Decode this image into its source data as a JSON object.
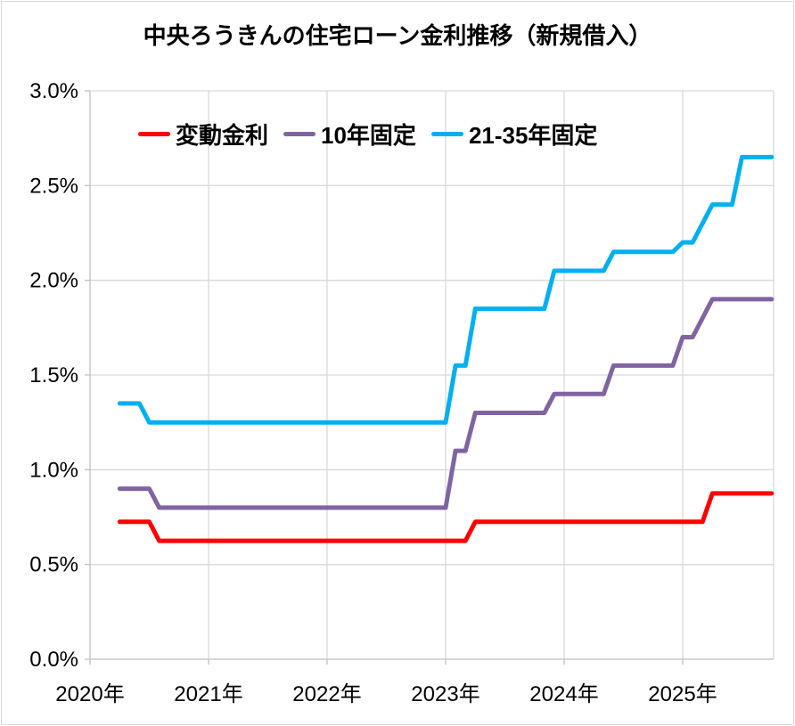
{
  "title": "中央ろうきんの住宅ローン金利推移（新規借入）",
  "colors": {
    "background": "#ffffff",
    "gridline": "#d9d9d9",
    "axis_line": "#bfbfbf",
    "text": "#000000",
    "series_variable": "#ff0000",
    "series_10y": "#8064a2",
    "series_21_35y": "#00b0f0"
  },
  "chart_data": {
    "type": "line",
    "title": "中央ろうきんの住宅ローン金利推移（新規借入）",
    "xlabel": "",
    "ylabel": "",
    "ylim": [
      0,
      3.0
    ],
    "y_tick_step": 0.5,
    "y_tick_labels": [
      "0.0%",
      "0.5%",
      "1.0%",
      "1.5%",
      "2.0%",
      "2.5%",
      "3.0%"
    ],
    "x_tick_labels": [
      "2020年",
      "2021年",
      "2022年",
      "2023年",
      "2024年",
      "2025年"
    ],
    "x_tick_years": [
      2020,
      2021,
      2022,
      2023,
      2024,
      2025
    ],
    "grid": true,
    "legend_position": "top",
    "x_interval": "monthly",
    "x_start": "2020-04",
    "x_end": "2025-10",
    "months": [
      "2020-04",
      "2020-05",
      "2020-06",
      "2020-07",
      "2020-08",
      "2020-09",
      "2020-10",
      "2020-11",
      "2020-12",
      "2021-01",
      "2021-02",
      "2021-03",
      "2021-04",
      "2021-05",
      "2021-06",
      "2021-07",
      "2021-08",
      "2021-09",
      "2021-10",
      "2021-11",
      "2021-12",
      "2022-01",
      "2022-02",
      "2022-03",
      "2022-04",
      "2022-05",
      "2022-06",
      "2022-07",
      "2022-08",
      "2022-09",
      "2022-10",
      "2022-11",
      "2022-12",
      "2023-01",
      "2023-02",
      "2023-03",
      "2023-04",
      "2023-05",
      "2023-06",
      "2023-07",
      "2023-08",
      "2023-09",
      "2023-10",
      "2023-11",
      "2023-12",
      "2024-01",
      "2024-02",
      "2024-03",
      "2024-04",
      "2024-05",
      "2024-06",
      "2024-07",
      "2024-08",
      "2024-09",
      "2024-10",
      "2024-11",
      "2024-12",
      "2025-01",
      "2025-02",
      "2025-03",
      "2025-04",
      "2025-05",
      "2025-06",
      "2025-07",
      "2025-08",
      "2025-09",
      "2025-10"
    ],
    "unit": "%",
    "series": [
      {
        "id": "variable-rate",
        "name": "変動金利",
        "color": "#ff0000",
        "values": [
          0.725,
          0.725,
          0.725,
          0.725,
          0.625,
          0.625,
          0.625,
          0.625,
          0.625,
          0.625,
          0.625,
          0.625,
          0.625,
          0.625,
          0.625,
          0.625,
          0.625,
          0.625,
          0.625,
          0.625,
          0.625,
          0.625,
          0.625,
          0.625,
          0.625,
          0.625,
          0.625,
          0.625,
          0.625,
          0.625,
          0.625,
          0.625,
          0.625,
          0.625,
          0.625,
          0.625,
          0.725,
          0.725,
          0.725,
          0.725,
          0.725,
          0.725,
          0.725,
          0.725,
          0.725,
          0.725,
          0.725,
          0.725,
          0.725,
          0.725,
          0.725,
          0.725,
          0.725,
          0.725,
          0.725,
          0.725,
          0.725,
          0.725,
          0.725,
          0.725,
          0.875,
          0.875,
          0.875,
          0.875,
          0.875,
          0.875,
          0.875
        ]
      },
      {
        "id": "10y-fixed",
        "name": "10年固定",
        "color": "#8064a2",
        "values": [
          0.9,
          0.9,
          0.9,
          0.9,
          0.8,
          0.8,
          0.8,
          0.8,
          0.8,
          0.8,
          0.8,
          0.8,
          0.8,
          0.8,
          0.8,
          0.8,
          0.8,
          0.8,
          0.8,
          0.8,
          0.8,
          0.8,
          0.8,
          0.8,
          0.8,
          0.8,
          0.8,
          0.8,
          0.8,
          0.8,
          0.8,
          0.8,
          0.8,
          0.8,
          1.1,
          1.1,
          1.3,
          1.3,
          1.3,
          1.3,
          1.3,
          1.3,
          1.3,
          1.3,
          1.4,
          1.4,
          1.4,
          1.4,
          1.4,
          1.4,
          1.55,
          1.55,
          1.55,
          1.55,
          1.55,
          1.55,
          1.55,
          1.7,
          1.7,
          1.8,
          1.9,
          1.9,
          1.9,
          1.9,
          1.9,
          1.9,
          1.9
        ]
      },
      {
        "id": "21-35y-fixed",
        "name": "21-35年固定",
        "color": "#00b0f0",
        "values": [
          1.35,
          1.35,
          1.35,
          1.25,
          1.25,
          1.25,
          1.25,
          1.25,
          1.25,
          1.25,
          1.25,
          1.25,
          1.25,
          1.25,
          1.25,
          1.25,
          1.25,
          1.25,
          1.25,
          1.25,
          1.25,
          1.25,
          1.25,
          1.25,
          1.25,
          1.25,
          1.25,
          1.25,
          1.25,
          1.25,
          1.25,
          1.25,
          1.25,
          1.25,
          1.55,
          1.55,
          1.85,
          1.85,
          1.85,
          1.85,
          1.85,
          1.85,
          1.85,
          1.85,
          2.05,
          2.05,
          2.05,
          2.05,
          2.05,
          2.05,
          2.15,
          2.15,
          2.15,
          2.15,
          2.15,
          2.15,
          2.15,
          2.2,
          2.2,
          2.3,
          2.4,
          2.4,
          2.4,
          2.65,
          2.65,
          2.65,
          2.65
        ]
      }
    ]
  }
}
